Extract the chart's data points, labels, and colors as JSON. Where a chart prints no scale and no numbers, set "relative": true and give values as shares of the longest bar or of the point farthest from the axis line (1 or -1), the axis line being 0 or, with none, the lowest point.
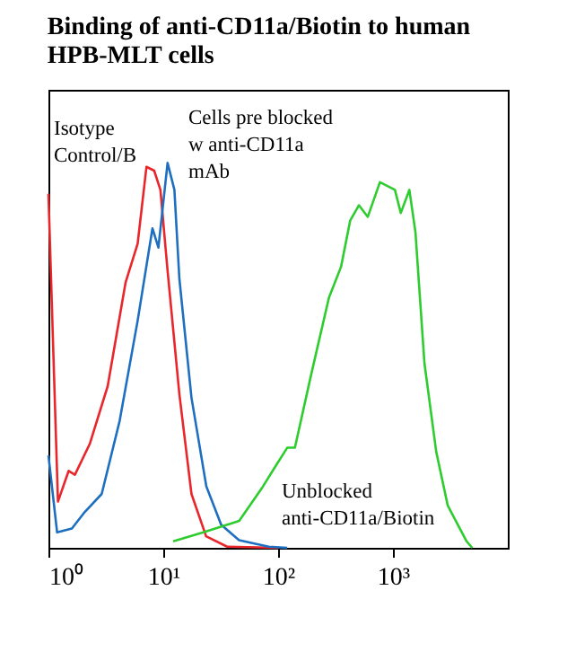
{
  "chart_data": {
    "type": "line",
    "title": [
      "Binding of anti-CD11a/Biotin to human",
      "HPB-MLT cells"
    ],
    "relative": true,
    "tick_labels": "x",
    "grid": false,
    "legend": false,
    "marker": "none",
    "line_style": "solid",
    "log": "x",
    "xlim": [
      1,
      10000
    ],
    "xticks": [
      {
        "value": 1,
        "label": "10⁰"
      },
      {
        "value": 10,
        "label": "10¹"
      },
      {
        "value": 100,
        "label": "10²"
      },
      {
        "value": 1000,
        "label": "10³"
      }
    ],
    "series": [
      {
        "color": "#e8262b",
        "x": [
          1,
          1.21,
          1.5,
          1.7,
          2.29,
          3.28,
          4.7,
          5.98,
          7.14,
          8.33,
          9.44,
          10.9,
          13.8,
          17.6,
          23.6,
          36,
          100
        ],
        "values": [
          0.92,
          0.12,
          0.2,
          0.19,
          0.27,
          0.42,
          0.69,
          0.79,
          0.99,
          0.98,
          0.93,
          0.72,
          0.4,
          0.14,
          0.03,
          0.003,
          0
        ]
      },
      {
        "color": "#1f6fc0",
        "x": [
          1,
          1.19,
          1.6,
          2.03,
          2.91,
          4.17,
          5.98,
          8.05,
          9.07,
          10.9,
          12.5,
          13.8,
          17.6,
          23.7,
          31.9,
          45.7,
          83,
          120
        ],
        "values": [
          0.24,
          0.04,
          0.05,
          0.09,
          0.14,
          0.33,
          0.59,
          0.83,
          0.78,
          1.0,
          0.93,
          0.7,
          0.39,
          0.16,
          0.06,
          0.02,
          0.003,
          0
        ]
      },
      {
        "color": "#2ecc2e",
        "x": [
          12.2,
          22.3,
          45.8,
          74,
          94,
          120,
          140,
          194,
          277,
          353,
          424,
          505,
          604,
          770,
          1040,
          1170,
          1390,
          1570,
          1880,
          2380,
          3000,
          4370,
          4900
        ],
        "values": [
          0.017,
          0.04,
          0.07,
          0.16,
          0.21,
          0.26,
          0.26,
          0.45,
          0.65,
          0.73,
          0.85,
          0.89,
          0.86,
          0.95,
          0.93,
          0.87,
          0.93,
          0.82,
          0.48,
          0.25,
          0.11,
          0.017,
          0
        ]
      }
    ],
    "annotations": [
      "Isotype\nControl/B",
      "Cells pre blocked\nw anti-CD11a\nmAb",
      "Unblocked\nanti-CD11a/Biotin"
    ]
  }
}
